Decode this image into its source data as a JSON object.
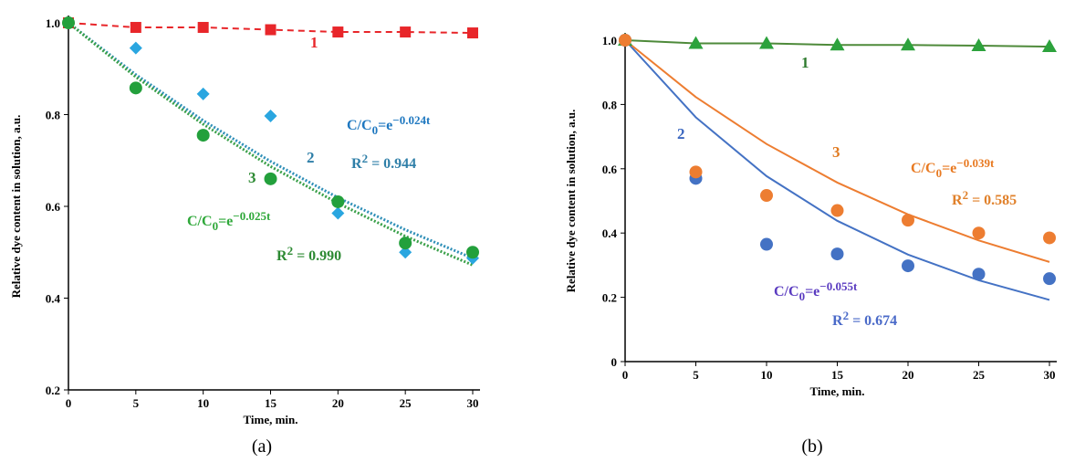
{
  "chart_data": [
    {
      "type": "scatter",
      "caption": "(a)",
      "xlabel": "Time, min.",
      "ylabel": "Relative dye content in solution, a.u.",
      "x": [
        0,
        5,
        10,
        15,
        20,
        25,
        30
      ],
      "xlim": [
        0,
        30
      ],
      "xticks": [
        0,
        5,
        10,
        15,
        20,
        25,
        30
      ],
      "ylim": [
        0.2,
        1
      ],
      "yticks": [
        0.2,
        0.4,
        0.6,
        0.8,
        {
          "value": 1,
          "label": "1.0"
        }
      ],
      "series": [
        {
          "name": "1",
          "color": "#e8262a",
          "label_color": "#e8262a",
          "marker": "square",
          "line": "dashed",
          "values": [
            1.0,
            0.99,
            0.99,
            0.985,
            0.98,
            0.98,
            0.978
          ]
        },
        {
          "name": "2",
          "color": "#2aa6e0",
          "label_color": "#2f7fa8",
          "marker": "diamond",
          "values": [
            1.0,
            0.945,
            0.845,
            0.797,
            0.585,
            0.5,
            0.487
          ]
        },
        {
          "name": "3",
          "color": "#23a03c",
          "label_color": "#2d8a33",
          "marker": "circle",
          "values": [
            1.0,
            0.858,
            0.755,
            0.66,
            0.61,
            0.52,
            0.5
          ]
        }
      ],
      "fits": [
        {
          "color": "#2f8fb8",
          "style": "dotted",
          "values": [
            1.0,
            0.887,
            0.787,
            0.698,
            0.619,
            0.549,
            0.487
          ]
        },
        {
          "color": "#3aa04a",
          "style": "dotted",
          "values": [
            1.0,
            0.882,
            0.779,
            0.687,
            0.607,
            0.535,
            0.472
          ]
        }
      ],
      "annotations": [
        {
          "color": "#1f78c0",
          "parts": [
            {
              "text": "C/C"
            },
            {
              "text": "0",
              "shift": "sub"
            },
            {
              "text": "=e"
            },
            {
              "text": "−0.024t",
              "shift": "sup"
            }
          ]
        },
        {
          "color": "#2f7fa8",
          "parts": [
            {
              "text": "R"
            },
            {
              "text": "2",
              "shift": "sup"
            },
            {
              "text": " = 0.944"
            }
          ]
        },
        {
          "color": "#2fa83a",
          "parts": [
            {
              "text": "C/C"
            },
            {
              "text": "0",
              "shift": "sub"
            },
            {
              "text": "=e"
            },
            {
              "text": "−0.025t",
              "shift": "sup"
            }
          ]
        },
        {
          "color": "#2d8a33",
          "parts": [
            {
              "text": "R"
            },
            {
              "text": "2",
              "shift": "sup"
            },
            {
              "text": " = 0.990"
            }
          ]
        }
      ]
    },
    {
      "type": "scatter",
      "caption": "(b)",
      "xlabel": "Time, min.",
      "ylabel": "Relative dye content in solution, a.u.",
      "x": [
        0,
        5,
        10,
        15,
        20,
        25,
        30
      ],
      "xlim": [
        0,
        30
      ],
      "xticks": [
        0,
        5,
        10,
        15,
        20,
        25,
        30
      ],
      "ylim": [
        0,
        1
      ],
      "yticks": [
        0,
        0.2,
        0.4,
        0.6,
        0.8,
        {
          "value": 1,
          "label": "1.0"
        }
      ],
      "series": [
        {
          "name": "1",
          "color": "#2ca23c",
          "label_color": "#2d7a2d",
          "marker": "triangle",
          "line": "solid",
          "line_color": "#4e8a3a",
          "values": [
            1.0,
            0.99,
            0.99,
            0.985,
            0.985,
            0.983,
            0.98
          ]
        },
        {
          "name": "2",
          "color": "#4472c4",
          "label_color": "#3b67c0",
          "marker": "circle",
          "values": [
            1.0,
            0.57,
            0.365,
            0.335,
            0.298,
            0.272,
            0.258
          ]
        },
        {
          "name": "3",
          "color": "#ed7d31",
          "label_color": "#e07a20",
          "marker": "circle",
          "values": [
            1.0,
            0.59,
            0.517,
            0.47,
            0.44,
            0.4,
            0.385
          ]
        }
      ],
      "fits": [
        {
          "color": "#4472c4",
          "style": "solid",
          "values": [
            1.0,
            0.76,
            0.577,
            0.438,
            0.333,
            0.253,
            0.192
          ]
        },
        {
          "color": "#ed7d31",
          "style": "solid",
          "values": [
            1.0,
            0.823,
            0.677,
            0.557,
            0.458,
            0.377,
            0.31
          ]
        }
      ],
      "annotations": [
        {
          "color": "#e87a22",
          "parts": [
            {
              "text": "C/C"
            },
            {
              "text": "0",
              "shift": "sub"
            },
            {
              "text": "=e"
            },
            {
              "text": "−0.039t",
              "shift": "sup"
            }
          ]
        },
        {
          "color": "#e0802a",
          "parts": [
            {
              "text": "R"
            },
            {
              "text": "2",
              "shift": "sup"
            },
            {
              "text": " = 0.585"
            }
          ]
        },
        {
          "color": "#5a3bc0",
          "parts": [
            {
              "text": "C/C"
            },
            {
              "text": "0",
              "shift": "sub"
            },
            {
              "text": "=e"
            },
            {
              "text": "−0.055t",
              "shift": "sup"
            }
          ]
        },
        {
          "color": "#4a6ac8",
          "parts": [
            {
              "text": "R"
            },
            {
              "text": "2",
              "shift": "sup"
            },
            {
              "text": " = 0.674"
            }
          ]
        }
      ]
    }
  ]
}
